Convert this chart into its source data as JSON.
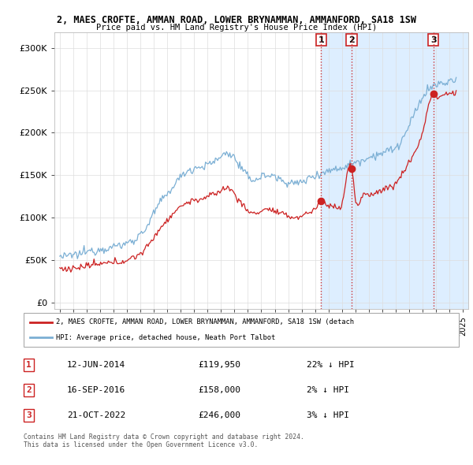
{
  "title_line1": "2, MAES CROFTE, AMMAN ROAD, LOWER BRYNAMMAN, AMMANFORD, SA18 1SW",
  "title_line2": "Price paid vs. HM Land Registry's House Price Index (HPI)",
  "background_color": "#ffffff",
  "grid_color": "#dddddd",
  "hpi_color": "#7bafd4",
  "price_color": "#cc2222",
  "yticks": [
    0,
    50000,
    100000,
    150000,
    200000,
    250000,
    300000
  ],
  "ytick_labels": [
    "£0",
    "£50K",
    "£100K",
    "£150K",
    "£200K",
    "£250K",
    "£300K"
  ],
  "ylim": [
    -8000,
    318000
  ],
  "xlim_min": 1994.6,
  "xlim_max": 2025.4,
  "sale_points": [
    {
      "date_num": 2014.45,
      "price": 119950,
      "label": "1"
    },
    {
      "date_num": 2016.71,
      "price": 158000,
      "label": "2"
    },
    {
      "date_num": 2022.8,
      "price": 246000,
      "label": "3"
    }
  ],
  "shade_color": "#ddeeff",
  "vline_color": "#cc3333",
  "legend_entries": [
    "2, MAES CROFTE, AMMAN ROAD, LOWER BRYNAMMAN, AMMANFORD, SA18 1SW (detach",
    "HPI: Average price, detached house, Neath Port Talbot"
  ],
  "table_rows": [
    {
      "num": "1",
      "date": "12-JUN-2014",
      "price": "£119,950",
      "note": "22% ↓ HPI"
    },
    {
      "num": "2",
      "date": "16-SEP-2016",
      "price": "£158,000",
      "note": "2% ↓ HPI"
    },
    {
      "num": "3",
      "date": "21-OCT-2022",
      "price": "£246,000",
      "note": "3% ↓ HPI"
    }
  ],
  "footer_text": "Contains HM Land Registry data © Crown copyright and database right 2024.\nThis data is licensed under the Open Government Licence v3.0.",
  "xtick_years": [
    1995,
    1996,
    1997,
    1998,
    1999,
    2000,
    2001,
    2002,
    2003,
    2004,
    2005,
    2006,
    2007,
    2008,
    2009,
    2010,
    2011,
    2012,
    2013,
    2014,
    2015,
    2016,
    2017,
    2018,
    2019,
    2020,
    2021,
    2022,
    2023,
    2024,
    2025
  ],
  "hpi_waypoints": [
    [
      1995.0,
      55000
    ],
    [
      1995.5,
      54000
    ],
    [
      1996.0,
      56000
    ],
    [
      1996.5,
      57000
    ],
    [
      1997.0,
      60000
    ],
    [
      1997.5,
      61000
    ],
    [
      1998.0,
      63000
    ],
    [
      1998.5,
      64000
    ],
    [
      1999.0,
      66000
    ],
    [
      1999.5,
      67000
    ],
    [
      2000.0,
      70000
    ],
    [
      2000.5,
      74000
    ],
    [
      2001.0,
      80000
    ],
    [
      2001.5,
      90000
    ],
    [
      2002.0,
      105000
    ],
    [
      2002.5,
      118000
    ],
    [
      2003.0,
      128000
    ],
    [
      2003.5,
      138000
    ],
    [
      2004.0,
      148000
    ],
    [
      2004.5,
      155000
    ],
    [
      2005.0,
      158000
    ],
    [
      2005.5,
      160000
    ],
    [
      2006.0,
      162000
    ],
    [
      2006.5,
      166000
    ],
    [
      2007.0,
      172000
    ],
    [
      2007.5,
      176000
    ],
    [
      2008.0,
      170000
    ],
    [
      2008.5,
      158000
    ],
    [
      2009.0,
      148000
    ],
    [
      2009.5,
      145000
    ],
    [
      2010.0,
      148000
    ],
    [
      2010.5,
      150000
    ],
    [
      2011.0,
      148000
    ],
    [
      2011.5,
      144000
    ],
    [
      2012.0,
      142000
    ],
    [
      2012.5,
      140000
    ],
    [
      2013.0,
      142000
    ],
    [
      2013.5,
      146000
    ],
    [
      2014.0,
      150000
    ],
    [
      2014.5,
      153000
    ],
    [
      2015.0,
      155000
    ],
    [
      2015.5,
      157000
    ],
    [
      2016.0,
      159000
    ],
    [
      2016.5,
      162000
    ],
    [
      2017.0,
      165000
    ],
    [
      2017.5,
      168000
    ],
    [
      2018.0,
      171000
    ],
    [
      2018.5,
      174000
    ],
    [
      2019.0,
      176000
    ],
    [
      2019.5,
      179000
    ],
    [
      2020.0,
      182000
    ],
    [
      2020.5,
      192000
    ],
    [
      2021.0,
      208000
    ],
    [
      2021.5,
      225000
    ],
    [
      2022.0,
      242000
    ],
    [
      2022.5,
      252000
    ],
    [
      2023.0,
      256000
    ],
    [
      2023.5,
      258000
    ],
    [
      2024.0,
      260000
    ],
    [
      2024.5,
      262000
    ]
  ],
  "prop_waypoints": [
    [
      1995.0,
      40000
    ],
    [
      1995.5,
      39500
    ],
    [
      1996.0,
      40500
    ],
    [
      1996.5,
      41000
    ],
    [
      1997.0,
      43000
    ],
    [
      1997.5,
      44000
    ],
    [
      1998.0,
      45000
    ],
    [
      1998.5,
      46000
    ],
    [
      1999.0,
      47000
    ],
    [
      1999.5,
      48000
    ],
    [
      2000.0,
      50000
    ],
    [
      2000.5,
      53000
    ],
    [
      2001.0,
      58000
    ],
    [
      2001.5,
      65000
    ],
    [
      2002.0,
      77000
    ],
    [
      2002.5,
      88000
    ],
    [
      2003.0,
      97000
    ],
    [
      2003.5,
      106000
    ],
    [
      2004.0,
      113000
    ],
    [
      2004.5,
      118000
    ],
    [
      2005.0,
      120000
    ],
    [
      2005.5,
      122000
    ],
    [
      2006.0,
      124000
    ],
    [
      2006.5,
      128000
    ],
    [
      2007.0,
      132000
    ],
    [
      2007.5,
      135000
    ],
    [
      2008.0,
      128000
    ],
    [
      2008.5,
      117000
    ],
    [
      2009.0,
      108000
    ],
    [
      2009.5,
      105000
    ],
    [
      2010.0,
      108000
    ],
    [
      2010.5,
      110000
    ],
    [
      2011.0,
      107000
    ],
    [
      2011.5,
      104000
    ],
    [
      2012.0,
      102000
    ],
    [
      2012.5,
      100000
    ],
    [
      2013.0,
      102000
    ],
    [
      2013.5,
      106000
    ],
    [
      2014.0,
      110000
    ],
    [
      2014.45,
      119950
    ],
    [
      2015.0,
      113000
    ],
    [
      2015.5,
      114000
    ],
    [
      2016.0,
      116000
    ],
    [
      2016.71,
      158000
    ],
    [
      2017.0,
      122000
    ],
    [
      2017.5,
      124000
    ],
    [
      2018.0,
      127000
    ],
    [
      2018.5,
      130000
    ],
    [
      2019.0,
      132000
    ],
    [
      2019.5,
      136000
    ],
    [
      2020.0,
      140000
    ],
    [
      2020.5,
      152000
    ],
    [
      2021.0,
      165000
    ],
    [
      2021.5,
      180000
    ],
    [
      2022.0,
      200000
    ],
    [
      2022.8,
      246000
    ],
    [
      2023.0,
      242000
    ],
    [
      2023.5,
      244000
    ],
    [
      2024.0,
      246000
    ],
    [
      2024.5,
      248000
    ]
  ]
}
